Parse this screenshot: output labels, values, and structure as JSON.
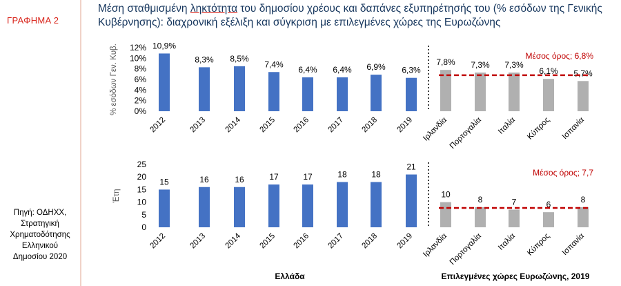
{
  "sidebar": {
    "graph_label": "ΓΡΑΦΗΜΑ 2",
    "source_lines": [
      "Πηγή: ΟΔΗΧΧ,",
      "Στρατηγική",
      "Χρηματοδότησης",
      "Ελληνικού",
      "Δημοσίου 2020"
    ]
  },
  "title": {
    "before": "Μέση σταθμισμένη ",
    "underlined": "ληκτότητα",
    "after": " του δημοσίου χρέους και δαπάνες εξυπηρέτησής του (% εσόδων της Γενικής Κυβέρνησης): διαχρονική εξέλιξη και σύγκριση με επιλεγμένες χώρες της Ευρωζώνης"
  },
  "colors": {
    "greece_bar": "#4472c4",
    "eurozone_bar": "#b0b0b0",
    "average_line": "#c00000",
    "label_red": "#c00000",
    "axis_text": "#000000"
  },
  "chart_data": [
    {
      "type": "bar",
      "ylabel": "% εσόδων Γεν. Κυβ.",
      "ylim": [
        0,
        12
      ],
      "yticks": [
        "0%",
        "2%",
        "4%",
        "6%",
        "8%",
        "10%",
        "12%"
      ],
      "categories": [
        "2012",
        "2013",
        "2014",
        "2015",
        "2016",
        "2017",
        "2018",
        "2019",
        "Ιρλανδία",
        "Πορτογαλία",
        "Ιταλία",
        "Κύπρος",
        "Ισπανία"
      ],
      "values": [
        10.9,
        8.3,
        8.5,
        7.4,
        6.4,
        6.4,
        6.9,
        6.3,
        7.8,
        7.3,
        7.3,
        6.1,
        5.7
      ],
      "data_labels": [
        "10,9%",
        "8,3%",
        "8,5%",
        "7,4%",
        "6,4%",
        "6,4%",
        "6,9%",
        "6,3%",
        "7,8%",
        "7,3%",
        "7,3%",
        "6,1%",
        "5,7%"
      ],
      "average": {
        "value": 6.8,
        "label": "Μέσος όρος; 6,8%"
      }
    },
    {
      "type": "bar",
      "ylabel": "Έτη",
      "ylim": [
        0,
        25
      ],
      "yticks": [
        "0",
        "5",
        "10",
        "15",
        "20",
        "25"
      ],
      "categories": [
        "2012",
        "2013",
        "2014",
        "2015",
        "2016",
        "2017",
        "2018",
        "2019",
        "Ιρλανδία",
        "Πορτογαλία",
        "Ιταλία",
        "Κύπρος",
        "Ισπανία"
      ],
      "values": [
        15,
        16,
        16,
        17,
        17,
        18,
        18,
        21,
        10,
        8,
        7,
        6,
        8
      ],
      "data_labels": [
        "15",
        "16",
        "16",
        "17",
        "17",
        "18",
        "18",
        "21",
        "10",
        "8",
        "7",
        "6",
        "8"
      ],
      "average": {
        "value": 7.7,
        "label": "Μέσος όρος; 7,7"
      }
    }
  ],
  "groups": {
    "greece": "Ελλάδα",
    "eurozone": "Επιλεγμένες χώρες Ευρωζώνης, 2019"
  }
}
